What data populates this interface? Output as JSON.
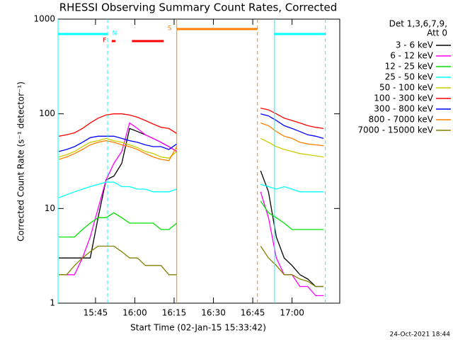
{
  "chart_data": {
    "type": "line",
    "title": "RHESSI Observing Summary Count Rates, Corrected",
    "y_label": "Corrected Count Rate (s⁻¹ detector⁻¹)",
    "x_label": "Start Time (02-Jan-15 15:33:42)",
    "legend_title": [
      "Det 1,3,6,7,9,",
      "Att 0"
    ],
    "footer": "24-Oct-2021 18:44",
    "y_scale": "log",
    "xlim": [
      930.7,
      1038.2
    ],
    "ylim": [
      1,
      1000
    ],
    "yticks": [
      1,
      10,
      100,
      1000
    ],
    "xticks": [
      {
        "value": 945,
        "label": "15:45"
      },
      {
        "value": 960,
        "label": "16:00"
      },
      {
        "value": 975,
        "label": "16:15"
      },
      {
        "value": 990,
        "label": "16:30"
      },
      {
        "value": 1005,
        "label": "16:45"
      },
      {
        "value": 1020,
        "label": "17:00"
      }
    ],
    "x": [
      931,
      934,
      937,
      940,
      943,
      946,
      949,
      952,
      955,
      958,
      961,
      964,
      967,
      970,
      973,
      976,
      990,
      1008,
      1011,
      1014,
      1017,
      1020,
      1023,
      1026,
      1029,
      1032
    ],
    "series": [
      {
        "name": "3 - 6 keV",
        "color": "#000000",
        "values": [
          3,
          3,
          3,
          3,
          3,
          8,
          20,
          22,
          30,
          70,
          65,
          60,
          55,
          50,
          45,
          40,
          null,
          25,
          15,
          5,
          3,
          2.5,
          2,
          1.8,
          1.5,
          1.5
        ]
      },
      {
        "name": "6 - 12 keV",
        "color": "#ff00ff",
        "values": [
          2,
          2,
          2,
          3,
          5,
          10,
          20,
          30,
          40,
          80,
          70,
          60,
          55,
          50,
          45,
          40,
          null,
          15,
          8,
          3,
          2,
          2,
          1.5,
          1.5,
          1.2,
          1.2
        ]
      },
      {
        "name": "12 - 25 keV",
        "color": "#00e000",
        "values": [
          5,
          5,
          5,
          6,
          7,
          8,
          8,
          9,
          8,
          7,
          7,
          7,
          7,
          6,
          6,
          7,
          null,
          12,
          9,
          8,
          7,
          6,
          6,
          6,
          6,
          6
        ]
      },
      {
        "name": "25 - 50 keV",
        "color": "#00ffff",
        "values": [
          13,
          14,
          15,
          16,
          17,
          18,
          19,
          19,
          17,
          17,
          16,
          16,
          15,
          15,
          15,
          16,
          null,
          18,
          17,
          16,
          17,
          16,
          15,
          15,
          15,
          15
        ]
      },
      {
        "name": "50 - 100 keV",
        "color": "#cccc00",
        "values": [
          35,
          37,
          40,
          45,
          50,
          52,
          55,
          52,
          50,
          47,
          44,
          40,
          38,
          35,
          34,
          40,
          null,
          55,
          50,
          45,
          42,
          40,
          38,
          37,
          36,
          35
        ]
      },
      {
        "name": "100 - 300 keV",
        "color": "#ff0000",
        "values": [
          58,
          60,
          63,
          70,
          80,
          90,
          97,
          100,
          100,
          97,
          92,
          85,
          78,
          72,
          70,
          62,
          null,
          115,
          110,
          100,
          90,
          85,
          80,
          75,
          72,
          70
        ]
      },
      {
        "name": "300 - 800 keV",
        "color": "#0000ff",
        "values": [
          40,
          42,
          45,
          50,
          56,
          58,
          58,
          58,
          55,
          52,
          50,
          47,
          45,
          45,
          42,
          48,
          null,
          100,
          95,
          85,
          75,
          70,
          65,
          60,
          58,
          55
        ]
      },
      {
        "name": "800 - 7000 keV",
        "color": "#ff8000",
        "values": [
          33,
          35,
          38,
          42,
          47,
          50,
          52,
          50,
          47,
          45,
          42,
          38,
          35,
          33,
          32,
          45,
          null,
          80,
          75,
          65,
          58,
          55,
          50,
          48,
          47,
          46
        ]
      },
      {
        "name": "7000 - 15000 keV",
        "color": "#808000",
        "values": [
          2,
          2,
          2.5,
          3,
          3.5,
          4,
          4,
          4,
          3.5,
          3,
          3,
          2.5,
          2.5,
          2.5,
          2,
          2,
          null,
          4,
          3,
          2.5,
          2,
          2,
          1.8,
          1.7,
          1.5,
          1.5
        ]
      }
    ],
    "flags": [
      {
        "label": "N",
        "color": "#00ffff",
        "spans": [
          [
            930.7,
            949.6
          ],
          [
            1013.3,
            1032.7
          ]
        ],
        "vlines": true
      },
      {
        "label": "F",
        "color": "#ff0000",
        "spans": [
          [
            951.2,
            952.6
          ],
          [
            958.9,
            971
          ]
        ],
        "vlines": false
      },
      {
        "label": "S",
        "color": "#ff8000",
        "spans": [
          [
            976,
            1006.8
          ]
        ],
        "vlines": true
      }
    ]
  }
}
